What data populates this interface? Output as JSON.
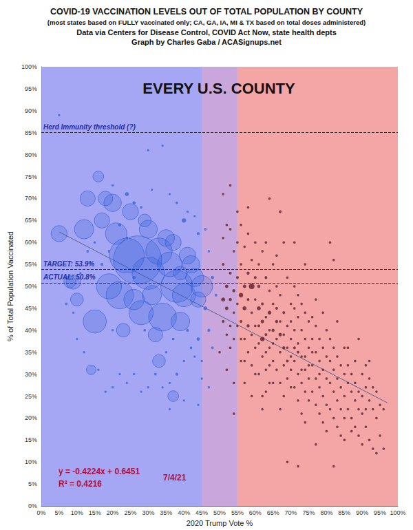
{
  "chart_data": {
    "type": "scatter",
    "title": "COVID-19 VACCINATION LEVELS OUT OF TOTAL POPULATION BY COUNTY",
    "subtitle": [
      "(most states based on FULLY vaccinated only; CA, GA, IA, MI & TX based on total doses administered)",
      "Data via Centers for Disease Control, COVID Act Now, state health depts",
      "Graph by Charles Gaba / ACASignups.net"
    ],
    "annotations": [
      "EVERY U.S. COUNTY",
      "y = -0.4224x + 0.6451",
      "R² = 0.4216",
      "7/4/21"
    ],
    "x_label": "2020 Trump Vote %",
    "y_label": "% of Total Population Vaccinated",
    "xlim": [
      0,
      100
    ],
    "ylim": [
      0,
      100
    ],
    "xticks": [
      {
        "value": 0,
        "label": "0%"
      },
      {
        "value": 5,
        "label": "5%"
      },
      {
        "value": 10,
        "label": "10%"
      },
      {
        "value": 15,
        "label": "15%"
      },
      {
        "value": 20,
        "label": "20%"
      },
      {
        "value": 25,
        "label": "25%"
      },
      {
        "value": 30,
        "label": "30%"
      },
      {
        "value": 35,
        "label": "35%"
      },
      {
        "value": 40,
        "label": "40%"
      },
      {
        "value": 45,
        "label": "45%"
      },
      {
        "value": 50,
        "label": "50%"
      },
      {
        "value": 55,
        "label": "55%"
      },
      {
        "value": 60,
        "label": "60%"
      },
      {
        "value": 65,
        "label": "65%"
      },
      {
        "value": 70,
        "label": "70%"
      },
      {
        "value": 75,
        "label": "75%"
      },
      {
        "value": 80,
        "label": "80%"
      },
      {
        "value": 85,
        "label": "85%"
      },
      {
        "value": 90,
        "label": "90%"
      },
      {
        "value": 95,
        "label": "95%"
      },
      {
        "value": 100,
        "label": "100%"
      }
    ],
    "yticks": [
      {
        "value": 0,
        "label": "0%"
      },
      {
        "value": 5,
        "label": "5%"
      },
      {
        "value": 10,
        "label": "10%"
      },
      {
        "value": 15,
        "label": "15%"
      },
      {
        "value": 20,
        "label": "20%"
      },
      {
        "value": 25,
        "label": "25%"
      },
      {
        "value": 30,
        "label": "30%"
      },
      {
        "value": 35,
        "label": "35%"
      },
      {
        "value": 40,
        "label": "40%"
      },
      {
        "value": 45,
        "label": "45%"
      },
      {
        "value": 50,
        "label": "50%"
      },
      {
        "value": 55,
        "label": "55%"
      },
      {
        "value": 60,
        "label": "60%"
      },
      {
        "value": 65,
        "label": "65%"
      },
      {
        "value": 70,
        "label": "70%"
      },
      {
        "value": 75,
        "label": "75%"
      },
      {
        "value": 80,
        "label": "80%"
      },
      {
        "value": 85,
        "label": "85%"
      },
      {
        "value": 90,
        "label": "90%"
      },
      {
        "value": 95,
        "label": "95%"
      },
      {
        "value": 100,
        "label": "100%"
      }
    ],
    "grid": true,
    "bands": [
      {
        "from": 0,
        "to": 45,
        "color": "#9698f2"
      },
      {
        "from": 45,
        "to": 55,
        "color": "#bf98d6"
      },
      {
        "from": 55,
        "to": 100,
        "color": "#f29698"
      }
    ],
    "reference_lines": [
      {
        "value": 85,
        "label": "Herd Immunity threshold (?)"
      },
      {
        "value": 53.9,
        "label": "TARGET: 53.9%"
      },
      {
        "value": 50.8,
        "label": "ACTUAL: 50.8%"
      }
    ],
    "series": [
      {
        "type": "scatter",
        "color": "#2f5bd8",
        "x": [
          27,
          24,
          30,
          38,
          34,
          22,
          33,
          19,
          36,
          28,
          40,
          15,
          21,
          45,
          12,
          39,
          30,
          42,
          20,
          35,
          25,
          13,
          17,
          18,
          9,
          41,
          31,
          43,
          26,
          37,
          44,
          32,
          23,
          16,
          5,
          10,
          14,
          39,
          8,
          33,
          37,
          29,
          5,
          30,
          34,
          20,
          24,
          26,
          28,
          31,
          36,
          38,
          41,
          43,
          40,
          44,
          46,
          47,
          48,
          49,
          46,
          47,
          48,
          45,
          44,
          42,
          40,
          38,
          36,
          34,
          32,
          30,
          28,
          26,
          24,
          22,
          20,
          18,
          16,
          12,
          10,
          9,
          7,
          11,
          13,
          15,
          17,
          19,
          22,
          24,
          26,
          29,
          35,
          37,
          41,
          43,
          45,
          47,
          44,
          40,
          36,
          20
        ],
        "values": [
          56,
          57,
          53,
          50,
          43,
          48,
          58,
          50,
          55,
          44,
          48,
          42,
          62,
          50,
          63,
          42,
          63,
          55,
          69,
          61,
          67,
          70,
          65,
          70,
          51,
          57,
          48,
          52,
          47,
          60,
          47,
          39,
          40,
          75,
          62,
          47,
          31,
          53,
          51,
          33,
          25,
          65,
          89,
          81,
          82,
          73,
          71,
          69,
          68,
          72,
          71,
          69,
          67,
          66,
          65,
          62,
          63,
          58,
          52,
          48,
          45,
          40,
          36,
          33,
          38,
          36,
          33,
          30,
          28,
          27,
          30,
          27,
          26,
          30,
          28,
          30,
          27,
          26,
          31,
          35,
          38,
          44,
          46,
          53,
          58,
          60,
          55,
          58,
          64,
          61,
          52,
          40,
          35,
          38,
          40,
          34,
          29,
          27,
          23,
          24,
          22,
          40
        ],
        "size": [
          10000,
          5200,
          4500,
          4400,
          3300,
          3200,
          3000,
          2700,
          2600,
          2500,
          2300,
          2300,
          2000,
          2000,
          1600,
          1500,
          1400,
          1300,
          1300,
          1200,
          1100,
          1000,
          1000,
          900,
          900,
          1200,
          1600,
          1400,
          1800,
          1100,
          1000,
          900,
          800,
          500,
          1100,
          700,
          400,
          800,
          600,
          700,
          500,
          700,
          10,
          20,
          10,
          30,
          80,
          60,
          40,
          15,
          20,
          40,
          30,
          20,
          100,
          50,
          40,
          30,
          60,
          40,
          80,
          50,
          40,
          30,
          60,
          40,
          30,
          50,
          30,
          20,
          40,
          20,
          20,
          30,
          20,
          20,
          20,
          10,
          30,
          20,
          20,
          30,
          40,
          20,
          40,
          30,
          50,
          40,
          60,
          50,
          70,
          40,
          30,
          40,
          50,
          30,
          20,
          20,
          20,
          20,
          15,
          20
        ]
      },
      {
        "type": "scatter",
        "color": "#5a0d18",
        "x": [
          51,
          52,
          53,
          54,
          51,
          52,
          53,
          54,
          51,
          52,
          53,
          54,
          55,
          55,
          55,
          51,
          52,
          53,
          54,
          50,
          52,
          54,
          53,
          55,
          51,
          53,
          55,
          54,
          56,
          57,
          58,
          59,
          56,
          57,
          58,
          59,
          56,
          57,
          58,
          59,
          60,
          60,
          60,
          56,
          57,
          58,
          59,
          60,
          57,
          59,
          56,
          58,
          60,
          59,
          56,
          57,
          58,
          60,
          61,
          62,
          63,
          64,
          61,
          62,
          63,
          64,
          61,
          62,
          63,
          64,
          65,
          61,
          62,
          63,
          64,
          65,
          65,
          61,
          62,
          63,
          64,
          65,
          62,
          64,
          61,
          63,
          65,
          64,
          63,
          65,
          62,
          66,
          67,
          68,
          69,
          70,
          66,
          67,
          68,
          69,
          70,
          66,
          67,
          68,
          69,
          70,
          66,
          67,
          68,
          69,
          70,
          66,
          68,
          67,
          69,
          70,
          67,
          68,
          69,
          66,
          70,
          67,
          71,
          72,
          73,
          74,
          75,
          71,
          72,
          73,
          74,
          75,
          71,
          72,
          73,
          74,
          75,
          71,
          72,
          73,
          74,
          75,
          71,
          72,
          73,
          74,
          72,
          74,
          71,
          73,
          75,
          72,
          74,
          71,
          76,
          77,
          78,
          79,
          80,
          76,
          77,
          78,
          79,
          80,
          76,
          77,
          78,
          79,
          80,
          76,
          77,
          78,
          79,
          80,
          77,
          79,
          78,
          76,
          80,
          77,
          81,
          82,
          83,
          84,
          85,
          81,
          82,
          83,
          84,
          85,
          81,
          82,
          83,
          84,
          85,
          81,
          82,
          83,
          84,
          85,
          81,
          82,
          83,
          85,
          82,
          86,
          87,
          88,
          89,
          90,
          86,
          87,
          88,
          89,
          90,
          86,
          87,
          88,
          89,
          90,
          86,
          88,
          89,
          87,
          90,
          91,
          92,
          93,
          94,
          91,
          92,
          93,
          94,
          91,
          92,
          93,
          95,
          96,
          95,
          94,
          91,
          92,
          96
        ],
        "values": [
          55,
          50,
          47,
          44,
          42,
          39,
          36,
          58,
          61,
          64,
          53,
          49,
          46,
          41,
          52,
          47,
          45,
          41,
          38,
          35,
          31,
          28,
          63,
          60,
          71,
          73,
          67,
          21,
          55,
          50,
          47,
          44,
          42,
          38,
          35,
          32,
          33,
          59,
          62,
          56,
          52,
          47,
          41,
          48,
          45,
          41,
          39,
          36,
          28,
          25,
          64,
          68,
          60,
          50,
          38,
          33,
          53,
          30,
          50,
          46,
          43,
          40,
          37,
          34,
          31,
          28,
          45,
          42,
          39,
          36,
          33,
          55,
          58,
          52,
          49,
          46,
          40,
          30,
          25,
          60,
          70,
          55,
          38,
          44,
          41,
          35,
          37,
          32,
          26,
          28,
          22,
          45,
          42,
          39,
          36,
          34,
          38,
          35,
          32,
          29,
          27,
          50,
          48,
          44,
          41,
          38,
          31,
          28,
          25,
          52,
          46,
          57,
          60,
          67,
          10,
          31,
          39,
          36,
          33,
          42,
          42,
          22,
          40,
          37,
          34,
          31,
          29,
          33,
          30,
          28,
          26,
          24,
          45,
          43,
          40,
          38,
          36,
          50,
          48,
          46,
          44,
          42,
          27,
          24,
          21,
          19,
          35,
          34,
          36,
          31,
          32,
          9,
          55,
          60,
          38,
          35,
          33,
          31,
          29,
          32,
          29,
          27,
          25,
          23,
          43,
          41,
          38,
          36,
          34,
          26,
          23,
          21,
          19,
          17,
          47,
          44,
          30,
          35,
          40,
          14,
          33,
          31,
          29,
          27,
          25,
          28,
          26,
          24,
          22,
          20,
          38,
          36,
          34,
          32,
          30,
          22,
          20,
          18,
          16,
          15,
          60,
          56,
          42,
          36,
          9,
          28,
          26,
          24,
          22,
          21,
          32,
          30,
          28,
          26,
          25,
          22,
          20,
          18,
          16,
          14,
          36,
          33,
          38,
          17,
          30,
          27,
          24,
          22,
          20,
          18,
          15,
          13,
          12,
          32,
          29,
          27,
          23,
          22,
          16,
          26,
          22,
          33,
          13
        ],
        "size": [
          40,
          60,
          50,
          30,
          40,
          20,
          30,
          30,
          20,
          20,
          40,
          50,
          30,
          20,
          40,
          80,
          60,
          30,
          20,
          20,
          20,
          20,
          10,
          20,
          10,
          10,
          10,
          10,
          30,
          60,
          40,
          30,
          40,
          30,
          20,
          20,
          20,
          20,
          10,
          30,
          40,
          30,
          20,
          100,
          80,
          50,
          30,
          20,
          10,
          10,
          10,
          10,
          20,
          150,
          30,
          15,
          50,
          10,
          50,
          40,
          30,
          30,
          20,
          20,
          20,
          10,
          80,
          60,
          40,
          30,
          20,
          20,
          30,
          40,
          20,
          30,
          50,
          10,
          10,
          10,
          10,
          20,
          100,
          70,
          40,
          30,
          20,
          20,
          10,
          10,
          10,
          40,
          30,
          30,
          20,
          20,
          30,
          20,
          20,
          10,
          10,
          30,
          20,
          40,
          30,
          20,
          10,
          10,
          10,
          10,
          20,
          20,
          10,
          40,
          30,
          20,
          60,
          50,
          40,
          50,
          30,
          10,
          30,
          20,
          20,
          20,
          10,
          20,
          20,
          10,
          10,
          10,
          20,
          30,
          20,
          20,
          20,
          10,
          10,
          20,
          10,
          10,
          10,
          10,
          10,
          10,
          40,
          30,
          40,
          30,
          20,
          10,
          10,
          10,
          20,
          20,
          20,
          10,
          10,
          20,
          10,
          10,
          10,
          10,
          10,
          20,
          10,
          10,
          10,
          10,
          10,
          10,
          10,
          10,
          10,
          10,
          20,
          30,
          10,
          5,
          10,
          10,
          10,
          10,
          10,
          10,
          10,
          10,
          10,
          10,
          10,
          10,
          10,
          10,
          10,
          10,
          10,
          10,
          5,
          5,
          10,
          20,
          10,
          10,
          5,
          5,
          5,
          5,
          5,
          5,
          5,
          5,
          5,
          5,
          5,
          5,
          5,
          5,
          5,
          5,
          5,
          5,
          5,
          5,
          5,
          5,
          5,
          5,
          5,
          5,
          5,
          5,
          5,
          5,
          5,
          5,
          5,
          5,
          5,
          5,
          5,
          5,
          5
        ]
      },
      {
        "type": "line",
        "color": "#55638f",
        "x": [
          5,
          97
        ],
        "values": [
          62.4,
          23.5
        ]
      }
    ]
  }
}
